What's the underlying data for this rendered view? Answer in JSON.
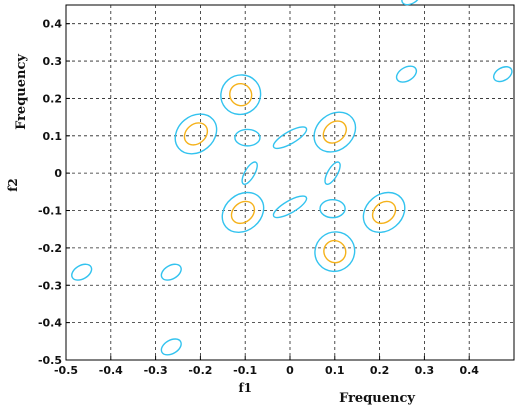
{
  "chart_data": {
    "type": "contour",
    "title": "",
    "xlabel": "f1",
    "xlabel2": "Frequency",
    "ylabel": "f2",
    "ylabel2": "Frequency",
    "xlim": [
      -0.5,
      0.5
    ],
    "ylim": [
      -0.5,
      0.45
    ],
    "xticks": [
      -0.5,
      -0.4,
      -0.3,
      -0.2,
      -0.1,
      0,
      0.1,
      0.2,
      0.3,
      0.4
    ],
    "xtick_labels": [
      "-0.5",
      "-0.4",
      "-0.3",
      "-0.2",
      "-0.1",
      "0",
      "0.1",
      "0.2",
      "0.3",
      "0.4"
    ],
    "yticks": [
      -0.5,
      -0.4,
      -0.3,
      -0.2,
      -0.1,
      0,
      0.1,
      0.2,
      0.3,
      0.4
    ],
    "ytick_labels": [
      "-0.5",
      "-0.4",
      "-0.3",
      "-0.2",
      "-0.1",
      "0",
      "0.1",
      "0.2",
      "0.3",
      "0.4"
    ],
    "grid": true,
    "grid_style": "dashed",
    "series": [
      {
        "level": "outer",
        "color": "#33c3ef",
        "contours": [
          {
            "cx": 0.27,
            "cy": 0.47,
            "rx": 0.022,
            "ry": 0.016,
            "angle": -30
          },
          {
            "cx": -0.11,
            "cy": 0.21,
            "rx": 0.045,
            "ry": 0.052,
            "angle": -40
          },
          {
            "cx": 0.26,
            "cy": 0.265,
            "rx": 0.024,
            "ry": 0.018,
            "angle": -30
          },
          {
            "cx": 0.475,
            "cy": 0.265,
            "rx": 0.022,
            "ry": 0.017,
            "angle": -30
          },
          {
            "cx": -0.21,
            "cy": 0.105,
            "rx": 0.05,
            "ry": 0.048,
            "angle": -40
          },
          {
            "cx": -0.095,
            "cy": 0.095,
            "rx": 0.028,
            "ry": 0.022,
            "angle": 0
          },
          {
            "cx": 0.0,
            "cy": 0.095,
            "rx": 0.042,
            "ry": 0.016,
            "angle": -30
          },
          {
            "cx": 0.1,
            "cy": 0.11,
            "rx": 0.05,
            "ry": 0.048,
            "angle": -40
          },
          {
            "cx": -0.09,
            "cy": 0.0,
            "rx": 0.028,
            "ry": 0.013,
            "angle": -60
          },
          {
            "cx": 0.095,
            "cy": 0.0,
            "rx": 0.028,
            "ry": 0.013,
            "angle": -60
          },
          {
            "cx": -0.105,
            "cy": -0.105,
            "rx": 0.05,
            "ry": 0.048,
            "angle": -40
          },
          {
            "cx": 0.0,
            "cy": -0.09,
            "rx": 0.042,
            "ry": 0.016,
            "angle": -30
          },
          {
            "cx": 0.095,
            "cy": -0.095,
            "rx": 0.028,
            "ry": 0.024,
            "angle": 0
          },
          {
            "cx": 0.21,
            "cy": -0.105,
            "rx": 0.05,
            "ry": 0.048,
            "angle": -40
          },
          {
            "cx": 0.1,
            "cy": -0.21,
            "rx": 0.045,
            "ry": 0.052,
            "angle": -40
          },
          {
            "cx": -0.465,
            "cy": -0.265,
            "rx": 0.024,
            "ry": 0.018,
            "angle": -30
          },
          {
            "cx": -0.265,
            "cy": -0.265,
            "rx": 0.024,
            "ry": 0.018,
            "angle": -30
          },
          {
            "cx": -0.265,
            "cy": -0.465,
            "rx": 0.024,
            "ry": 0.018,
            "angle": -30
          }
        ]
      },
      {
        "level": "inner",
        "color": "#f5b21b",
        "contours": [
          {
            "cx": -0.11,
            "cy": 0.21,
            "rx": 0.024,
            "ry": 0.03,
            "angle": -40
          },
          {
            "cx": -0.21,
            "cy": 0.105,
            "rx": 0.028,
            "ry": 0.026,
            "angle": -40
          },
          {
            "cx": 0.1,
            "cy": 0.11,
            "rx": 0.028,
            "ry": 0.026,
            "angle": -40
          },
          {
            "cx": -0.105,
            "cy": -0.105,
            "rx": 0.028,
            "ry": 0.026,
            "angle": -40
          },
          {
            "cx": 0.21,
            "cy": -0.105,
            "rx": 0.028,
            "ry": 0.026,
            "angle": -40
          },
          {
            "cx": 0.1,
            "cy": -0.21,
            "rx": 0.024,
            "ry": 0.03,
            "angle": -40
          }
        ]
      }
    ]
  }
}
